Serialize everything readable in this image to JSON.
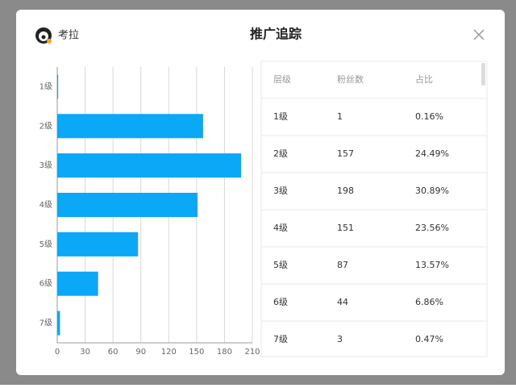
{
  "header": {
    "user": "考拉",
    "title": "推广追踪"
  },
  "chart_data": {
    "type": "bar",
    "orientation": "horizontal",
    "categories": [
      "1级",
      "2级",
      "3级",
      "4级",
      "5级",
      "6级",
      "7级"
    ],
    "values": [
      1,
      157,
      198,
      151,
      87,
      44,
      3
    ],
    "color": "#0aa8f7",
    "xlim": [
      0,
      210
    ],
    "xticks": [
      0,
      30,
      60,
      90,
      120,
      150,
      180,
      210
    ],
    "grid": true
  },
  "table": {
    "columns": [
      "层级",
      "粉丝数",
      "占比"
    ],
    "rows": [
      [
        "1级",
        "1",
        "0.16%"
      ],
      [
        "2级",
        "157",
        "24.49%"
      ],
      [
        "3级",
        "198",
        "30.89%"
      ],
      [
        "4级",
        "151",
        "23.56%"
      ],
      [
        "5级",
        "87",
        "13.57%"
      ],
      [
        "6级",
        "44",
        "6.86%"
      ],
      [
        "7级",
        "3",
        "0.47%"
      ]
    ]
  }
}
